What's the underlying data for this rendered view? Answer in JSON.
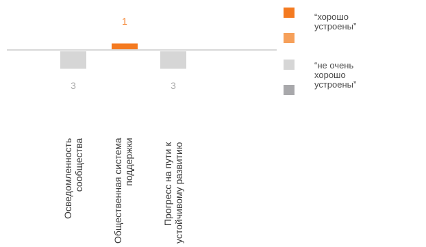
{
  "chart_data": {
    "type": "bar",
    "categories": [
      [
        "Осведомленность",
        "сообщества"
      ],
      [
        "Общественная система",
        "поддержки"
      ],
      [
        "Прогресс на пути к",
        "устойчивому развитию"
      ]
    ],
    "series": [
      {
        "name": "“хорошо устроены”",
        "values": [
          0,
          1,
          0
        ],
        "color": "#f47a20"
      },
      {
        "name": "“не очень хорошо устроены”",
        "values": [
          -3,
          0,
          -3
        ],
        "color": "#d6d6d6"
      }
    ],
    "data_labels": [
      "3",
      "1",
      "3"
    ],
    "label_colors": [
      "#aaaaaa",
      "#f47a20",
      "#aaaaaa"
    ],
    "ylim": [
      -3,
      3
    ],
    "title": "",
    "xlabel": "",
    "ylabel": ""
  },
  "legend": {
    "placement": "right",
    "items": [
      {
        "label": "“хорошо\nустроены”",
        "color": "#f47a20"
      },
      {
        "label": "",
        "color": "#f6a05a"
      },
      {
        "label": "“не очень\nхорошо\nустроены”",
        "color": "#d6d6d6"
      },
      {
        "label": "",
        "color": "#a8a8ab"
      }
    ]
  },
  "colors": {
    "axis": "#b0b0b0",
    "text": "#3a3a3a"
  }
}
